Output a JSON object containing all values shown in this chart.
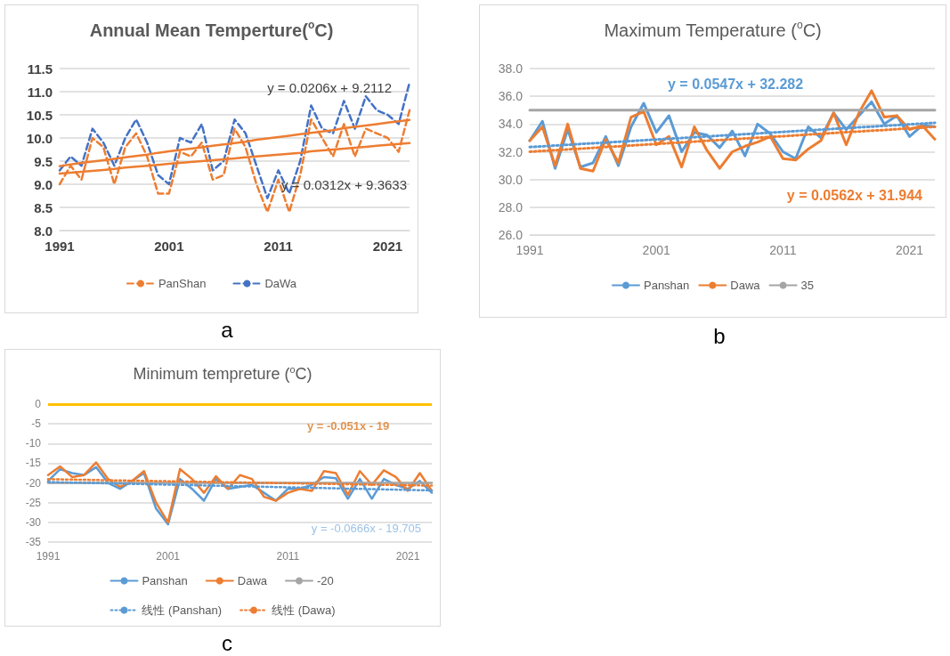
{
  "chart_data": [
    {
      "type": "line",
      "title": "Annual Mean Temperture($^{o}$C)",
      "categories": [
        "1991",
        null,
        null,
        null,
        null,
        null,
        null,
        null,
        null,
        null,
        "2001",
        null,
        null,
        null,
        null,
        null,
        null,
        null,
        null,
        null,
        "2011",
        null,
        null,
        null,
        null,
        null,
        null,
        null,
        null,
        null,
        "2021",
        null,
        null
      ],
      "series": [
        {
          "name": "PanShan",
          "color": "#ed7d31",
          "line_style": "dashed",
          "values": [
            9.0,
            9.4,
            9.1,
            10.0,
            9.8,
            9.0,
            9.8,
            10.1,
            9.6,
            8.8,
            8.8,
            9.7,
            9.6,
            9.9,
            9.1,
            9.2,
            10.2,
            9.8,
            9.0,
            8.4,
            9.1,
            8.4,
            9.2,
            10.4,
            10.0,
            9.6,
            10.3,
            9.6,
            10.2,
            10.1,
            10.0,
            9.7,
            10.6
          ]
        },
        {
          "name": "DaWa",
          "color": "#4472c4",
          "line_style": "dashed",
          "values": [
            9.3,
            9.6,
            9.4,
            10.2,
            9.9,
            9.4,
            10.0,
            10.4,
            9.9,
            9.2,
            9.0,
            10.0,
            9.9,
            10.3,
            9.3,
            9.5,
            10.4,
            10.1,
            9.4,
            8.7,
            9.3,
            8.8,
            9.5,
            10.7,
            10.2,
            10.1,
            10.8,
            10.2,
            10.9,
            10.6,
            10.5,
            10.3,
            11.2
          ]
        },
        {
          "color": "#ed7d31",
          "line_style": "solid",
          "values": [
            9.23,
            9.25,
            9.27,
            9.29,
            9.31,
            9.33,
            9.36,
            9.38,
            9.4,
            9.42,
            9.44,
            9.46,
            9.48,
            9.5,
            9.52,
            9.54,
            9.56,
            9.58,
            9.6,
            9.62,
            9.64,
            9.66,
            9.68,
            9.71,
            9.73,
            9.75,
            9.77,
            9.79,
            9.81,
            9.83,
            9.85,
            9.87,
            9.89
          ]
        },
        {
          "color": "#ed7d31",
          "line_style": "solid",
          "values": [
            9.39,
            9.43,
            9.46,
            9.49,
            9.52,
            9.55,
            9.58,
            9.61,
            9.64,
            9.68,
            9.71,
            9.74,
            9.77,
            9.8,
            9.83,
            9.86,
            9.89,
            9.92,
            9.96,
            9.99,
            10.02,
            10.05,
            10.08,
            10.11,
            10.14,
            10.17,
            10.21,
            10.24,
            10.27,
            10.3,
            10.33,
            10.36,
            10.39
          ]
        }
      ],
      "ylim": [
        8,
        11.5
      ],
      "yticks": [
        {
          "value": 8,
          "label": "8.0"
        },
        {
          "value": 8.5,
          "label": "8.5"
        },
        {
          "value": 9,
          "label": "9.0"
        },
        {
          "value": 9.5,
          "label": "9.5"
        },
        {
          "value": 10,
          "label": "10.0"
        },
        {
          "value": 10.5,
          "label": "10.5"
        },
        {
          "value": 11,
          "label": "11.0"
        },
        {
          "value": 11.5,
          "label": "11.5"
        }
      ],
      "grid": "y",
      "legend": "bottom",
      "annotations": [
        "y = 0.0206x + 9.2112",
        "y = 0.0312x + 9.3633",
        "a"
      ]
    },
    {
      "type": "line",
      "title": "Maximum Temperature ($^{o}$C)",
      "categories": [
        "1991",
        null,
        null,
        null,
        null,
        null,
        null,
        null,
        null,
        null,
        "2001",
        null,
        null,
        null,
        null,
        null,
        null,
        null,
        null,
        null,
        "2011",
        null,
        null,
        null,
        null,
        null,
        null,
        null,
        null,
        null,
        "2021",
        null,
        null
      ],
      "series": [
        {
          "name": "Panshan",
          "color": "#5b9bd5",
          "line_style": "solid",
          "values": [
            32.8,
            34.2,
            30.8,
            33.6,
            30.9,
            31.2,
            33.1,
            31.0,
            33.8,
            35.5,
            33.4,
            34.6,
            32.0,
            33.4,
            33.2,
            32.3,
            33.5,
            31.7,
            34.0,
            33.3,
            32.0,
            31.5,
            33.8,
            33.0,
            34.8,
            33.6,
            34.6,
            35.6,
            34.0,
            34.6,
            33.1,
            33.9,
            33.8
          ]
        },
        {
          "name": "Dawa",
          "color": "#ed7d31",
          "line_style": "solid",
          "values": [
            32.8,
            33.8,
            31.0,
            34.0,
            30.8,
            30.6,
            32.9,
            31.2,
            34.5,
            34.9,
            32.5,
            33.1,
            30.9,
            33.8,
            32.1,
            30.8,
            32.0,
            32.4,
            32.7,
            33.1,
            31.5,
            31.4,
            32.2,
            32.8,
            34.8,
            32.5,
            34.8,
            36.4,
            34.5,
            34.6,
            33.6,
            33.9,
            32.9
          ]
        },
        {
          "name": "35",
          "color": "#a5a5a5",
          "line_style": "solid",
          "values": [
            35,
            35,
            35,
            35,
            35,
            35,
            35,
            35,
            35,
            35,
            35,
            35,
            35,
            35,
            35,
            35,
            35,
            35,
            35,
            35,
            35,
            35,
            35,
            35,
            35,
            35,
            35,
            35,
            35,
            35,
            35,
            35,
            35
          ]
        },
        {
          "color": "#5b9bd5",
          "line_style": "dotted",
          "values": [
            32.34,
            32.39,
            32.45,
            32.5,
            32.56,
            32.61,
            32.66,
            32.72,
            32.77,
            32.83,
            32.88,
            32.94,
            32.99,
            33.05,
            33.1,
            33.16,
            33.21,
            33.27,
            33.32,
            33.38,
            33.43,
            33.49,
            33.54,
            33.59,
            33.65,
            33.7,
            33.76,
            33.81,
            33.87,
            33.92,
            33.98,
            34.03,
            34.09
          ]
        },
        {
          "color": "#ed7d31",
          "line_style": "dotted",
          "values": [
            32.0,
            32.06,
            32.11,
            32.17,
            32.22,
            32.28,
            32.34,
            32.39,
            32.45,
            32.51,
            32.56,
            32.62,
            32.67,
            32.73,
            32.79,
            32.84,
            32.9,
            32.96,
            33.01,
            33.07,
            33.12,
            33.18,
            33.24,
            33.29,
            33.35,
            33.41,
            33.46,
            33.52,
            33.57,
            33.63,
            33.69,
            33.74,
            33.8
          ]
        }
      ],
      "ylim": [
        26,
        38
      ],
      "yticks": [
        {
          "value": 26,
          "label": "26.0"
        },
        {
          "value": 28,
          "label": "28.0"
        },
        {
          "value": 30,
          "label": "30.0"
        },
        {
          "value": 32,
          "label": "32.0"
        },
        {
          "value": 34,
          "label": "34.0"
        },
        {
          "value": 36,
          "label": "36.0"
        },
        {
          "value": 38,
          "label": "38.0"
        }
      ],
      "grid": "y",
      "legend": "bottom",
      "annotations": [
        "y = 0.0547x + 32.282",
        "y = 0.0562x + 31.944",
        "b"
      ]
    },
    {
      "type": "line",
      "title": "Minimum tempreture ($^{o}$C)",
      "categories": [
        "1991",
        null,
        null,
        null,
        null,
        null,
        null,
        null,
        null,
        null,
        "2001",
        null,
        null,
        null,
        null,
        null,
        null,
        null,
        null,
        null,
        "2011",
        null,
        null,
        null,
        null,
        null,
        null,
        null,
        null,
        null,
        "2021",
        null,
        null
      ],
      "series": [
        {
          "name": "Panshan",
          "color": "#5b9bd5",
          "line_style": "solid",
          "values": [
            -19.5,
            -16.5,
            -17.5,
            -18.0,
            -16.0,
            -20.0,
            -21.5,
            -19.5,
            -17.5,
            -26.5,
            -30.5,
            -19.0,
            -21.5,
            -24.5,
            -19.0,
            -21.5,
            -21.0,
            -20.5,
            -22.5,
            -24.5,
            -21.5,
            -21.5,
            -20.5,
            -18.5,
            -18.8,
            -24.0,
            -19.0,
            -24.0,
            -19.0,
            -20.5,
            -21.5,
            -19.5,
            -22.5
          ]
        },
        {
          "name": "Dawa",
          "color": "#ed7d31",
          "line_style": "solid",
          "values": [
            -18.0,
            -15.8,
            -18.5,
            -18.0,
            -14.8,
            -19.0,
            -21.0,
            -19.5,
            -17.0,
            -25.0,
            -30.0,
            -16.5,
            -19.0,
            -22.5,
            -18.3,
            -21.5,
            -18.0,
            -19.0,
            -23.5,
            -24.5,
            -22.5,
            -21.5,
            -22.0,
            -17.0,
            -17.5,
            -23.0,
            -17.0,
            -20.5,
            -16.8,
            -18.5,
            -22.0,
            -17.5,
            -22.0
          ]
        },
        {
          "name": "-20",
          "color": "#a5a5a5",
          "line_style": "solid",
          "values": [
            -20,
            -20,
            -20,
            -20,
            -20,
            -20,
            -20,
            -20,
            -20,
            -20,
            -20,
            -20,
            -20,
            -20,
            -20,
            -20,
            -20,
            -20,
            -20,
            -20,
            -20,
            -20,
            -20,
            -20,
            -20,
            -20,
            -20,
            -20,
            -20,
            -20,
            -20,
            -20,
            -20
          ]
        },
        {
          "name": "线性 (Panshan)",
          "color": "#5b9bd5",
          "line_style": "dotted",
          "values": [
            -19.77,
            -19.84,
            -19.9,
            -19.97,
            -20.04,
            -20.1,
            -20.17,
            -20.24,
            -20.3,
            -20.37,
            -20.44,
            -20.5,
            -20.57,
            -20.64,
            -20.7,
            -20.77,
            -20.84,
            -20.9,
            -20.97,
            -21.04,
            -21.1,
            -21.17,
            -21.24,
            -21.3,
            -21.37,
            -21.44,
            -21.5,
            -21.57,
            -21.64,
            -21.7,
            -21.77,
            -21.84,
            -21.9
          ]
        },
        {
          "name": "线性 (Dawa)",
          "color": "#ed7d31",
          "line_style": "dotted",
          "values": [
            -19.05,
            -19.1,
            -19.15,
            -19.2,
            -19.26,
            -19.31,
            -19.36,
            -19.41,
            -19.46,
            -19.51,
            -19.56,
            -19.61,
            -19.66,
            -19.71,
            -19.77,
            -19.82,
            -19.87,
            -19.92,
            -19.97,
            -20.02,
            -20.07,
            -20.12,
            -20.17,
            -20.22,
            -20.28,
            -20.33,
            -20.38,
            -20.43,
            -20.48,
            -20.53,
            -20.58,
            -20.63,
            -20.68
          ]
        }
      ],
      "ylim": [
        -35,
        0
      ],
      "yticks": [
        -35,
        -30,
        -25,
        -20,
        -15,
        -10,
        -5,
        0
      ],
      "grid": "y",
      "legend": "bottom",
      "ref_lines": [
        {
          "axis": "y",
          "value": 0,
          "color": "#ffc000"
        }
      ],
      "annotations": [
        "y = -0.051x - 19",
        "y = -0.0666x - 19.705",
        "c"
      ]
    }
  ]
}
